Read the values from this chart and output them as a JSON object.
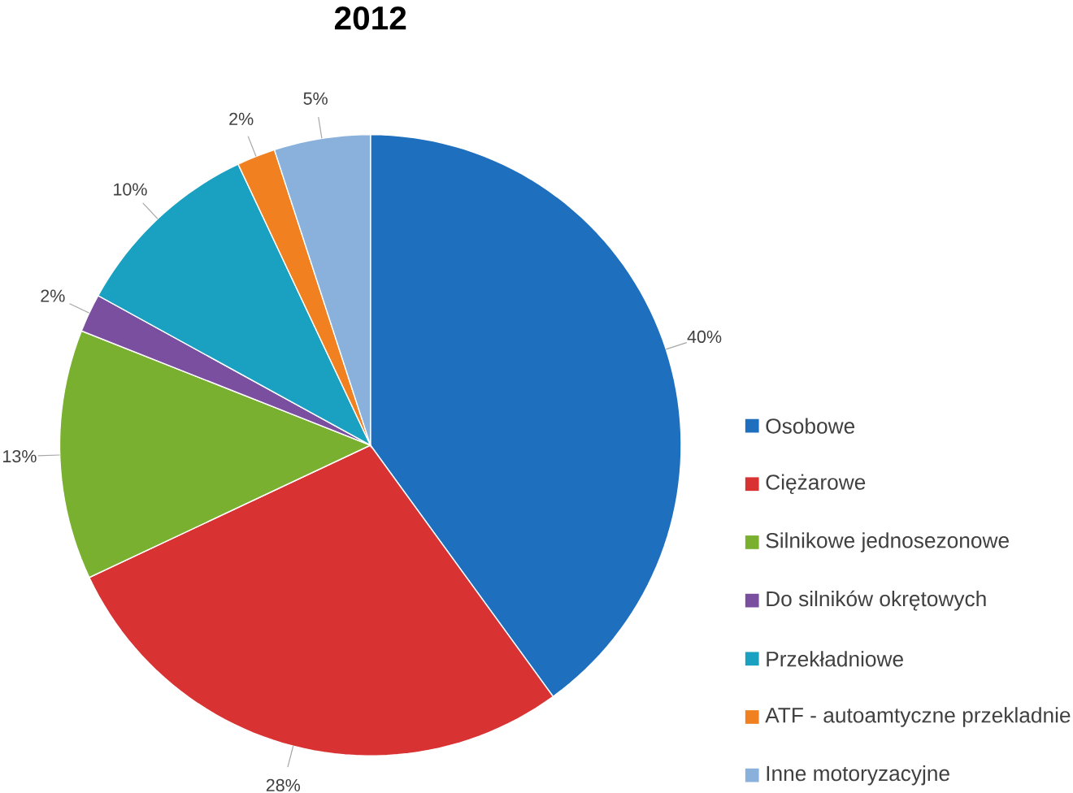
{
  "chart_data": {
    "type": "pie",
    "title": "2012",
    "categories": [
      "Osobowe",
      "Ciężarowe",
      "Silnikowe jednosezonowe",
      "Do silników okrętowych",
      "Przekładniowe",
      "ATF - autoamtyczne przekladnie",
      "Inne motoryzacyjne"
    ],
    "values": [
      40,
      28,
      13,
      2,
      10,
      2,
      5
    ],
    "value_labels": [
      "40%",
      "28%",
      "13%",
      "2%",
      "10%",
      "2%",
      "5%"
    ],
    "colors": [
      "#1f6fbf",
      "#d83232",
      "#7ab030",
      "#7a4fa0",
      "#1aa0c0",
      "#f08020",
      "#8ab0dc"
    ],
    "legend": "right"
  }
}
